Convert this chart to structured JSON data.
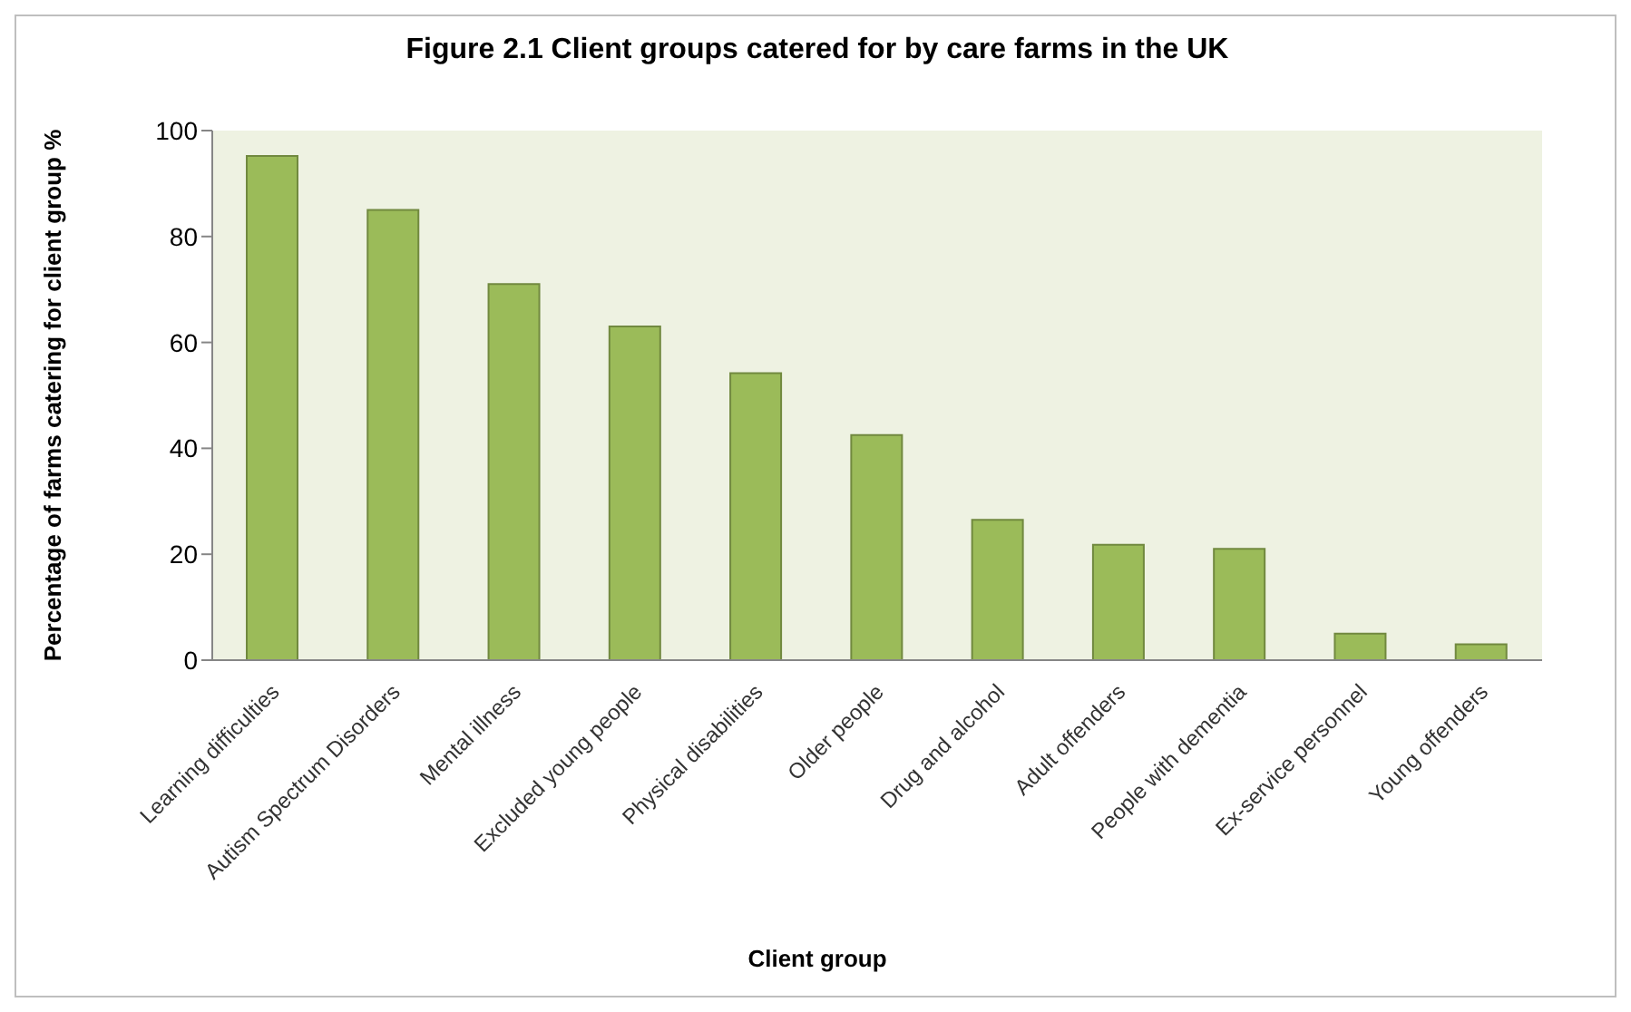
{
  "chart_data": {
    "type": "bar",
    "title": "Figure 2.1 Client groups catered for by care farms in the UK",
    "xlabel": "Client group",
    "ylabel": "Percentage of farms catering for client group %",
    "categories": [
      "Learning difficulties",
      "Autism Spectrum Disorders",
      "Mental illness",
      "Excluded young people",
      "Physical disabilities",
      "Older people",
      "Drug and alcohol",
      "Adult offenders",
      "People with dementia",
      "Ex-service personnel",
      "Young offenders"
    ],
    "values": [
      95.2,
      85,
      71,
      63,
      54.2,
      42.5,
      26.5,
      21.8,
      21,
      5,
      3
    ],
    "color": "#9bbb59",
    "ylim": [
      0,
      100
    ],
    "yticks": [
      0,
      20,
      40,
      60,
      80,
      100
    ],
    "grid": false,
    "legend": false
  }
}
